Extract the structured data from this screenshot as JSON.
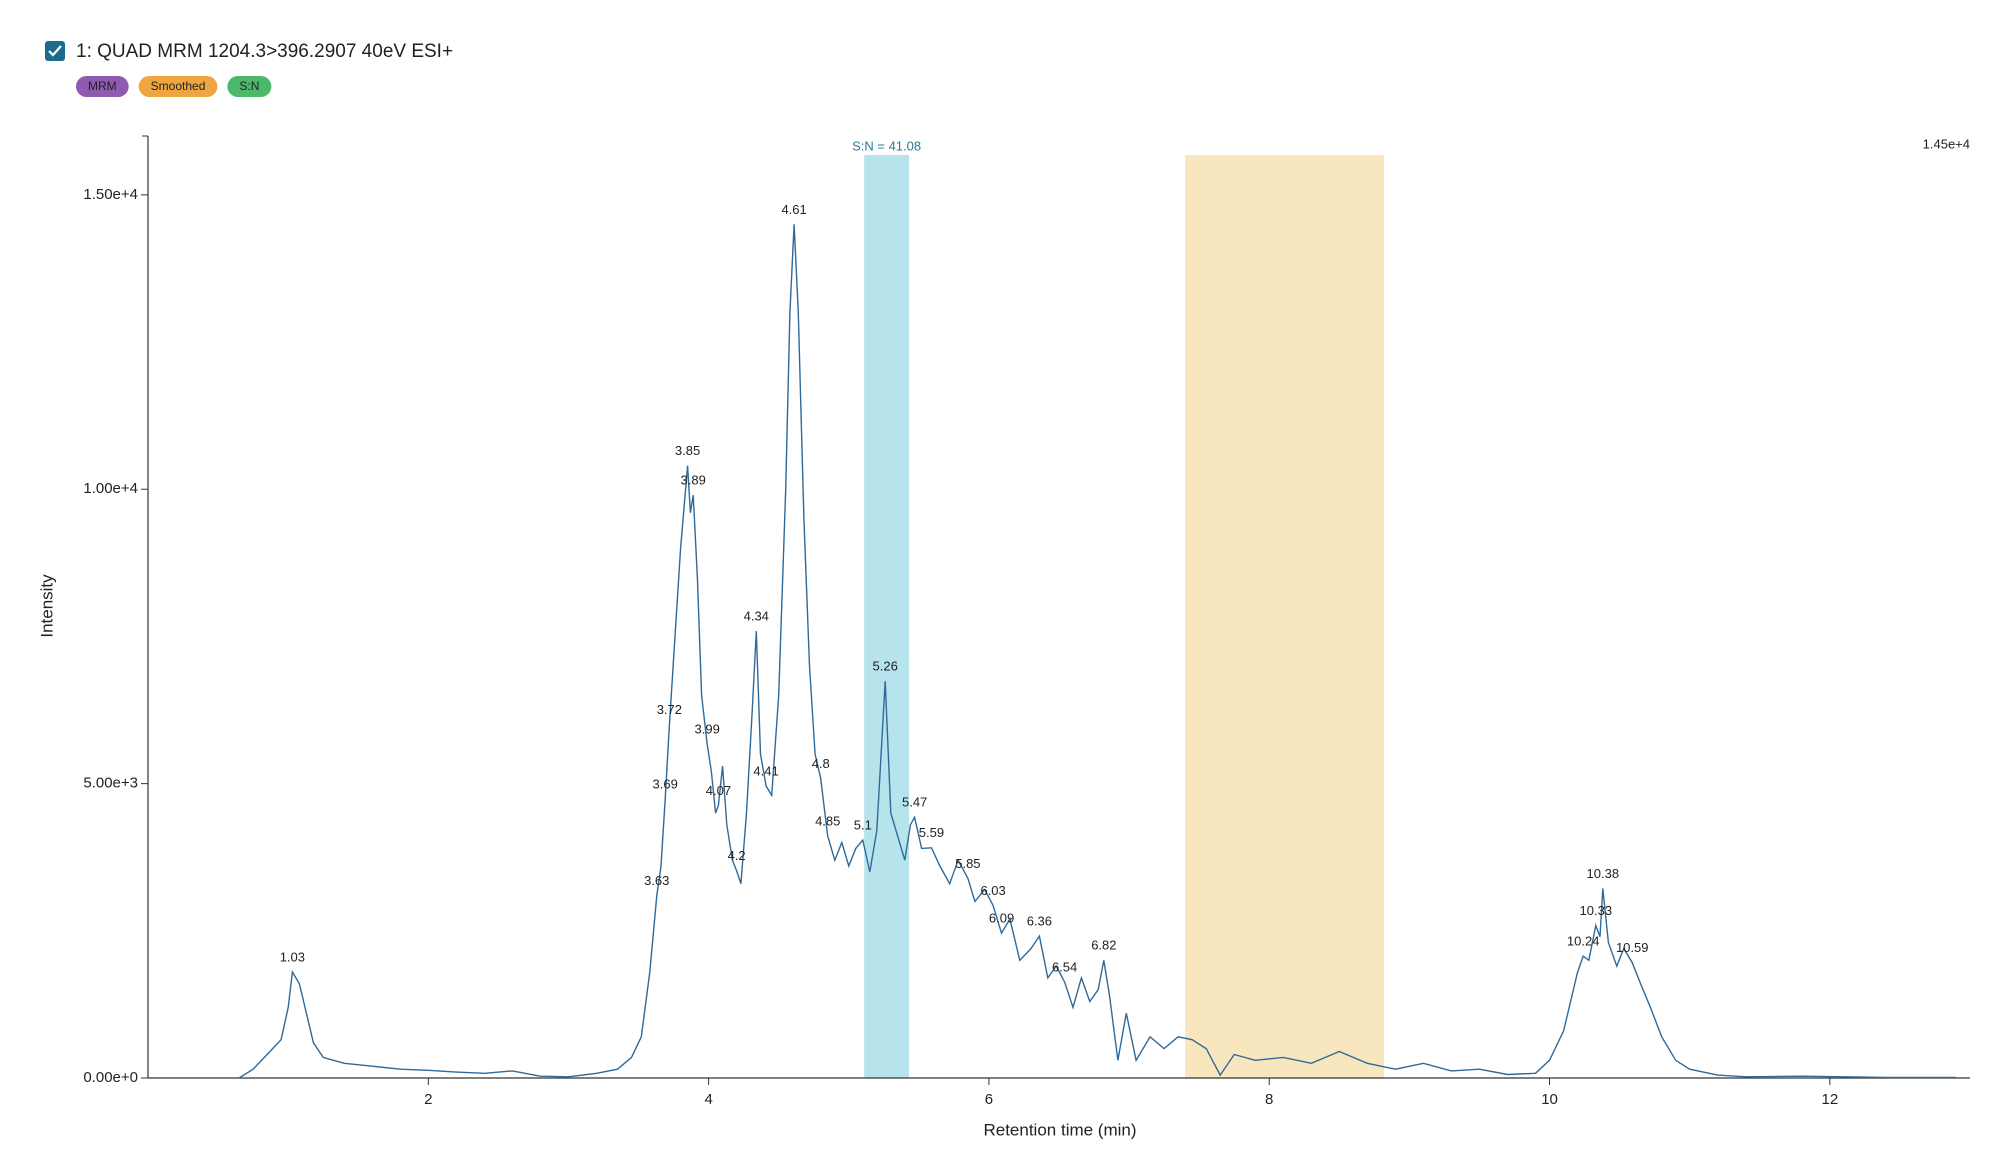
{
  "header": {
    "title": "1: QUAD MRM 1204.3>396.2907 40eV ESI+",
    "badges": [
      {
        "label": "MRM",
        "color": "#8e5bb0"
      },
      {
        "label": "Smoothed",
        "color": "#f0a640"
      },
      {
        "label": "S:N",
        "color": "#4cb86a"
      }
    ]
  },
  "chart_data": {
    "type": "line",
    "xlabel": "Retention time (min)",
    "ylabel": "Intensity",
    "xlim": [
      0,
      13
    ],
    "ylim": [
      0,
      16000
    ],
    "xticks": [
      2,
      4,
      6,
      8,
      10,
      12
    ],
    "yticks": [
      {
        "value": 0,
        "label": "0.00e+0"
      },
      {
        "value": 5000,
        "label": "5.00e+3"
      },
      {
        "value": 10000,
        "label": "1.00e+4"
      },
      {
        "value": 15000,
        "label": "1.50e+4"
      }
    ],
    "max_label": "1.45e+4",
    "regions": [
      {
        "xlim": [
          5.11,
          5.43
        ],
        "color": "#b7e3ec",
        "label": "S:N = 41.08"
      },
      {
        "xlim": [
          7.4,
          8.82
        ],
        "color": "#f8e6bf"
      }
    ],
    "series": [
      {
        "name": "MRM",
        "color": "#2f6a9a",
        "x": [
          0.65,
          0.75,
          0.85,
          0.95,
          1.0,
          1.03,
          1.08,
          1.12,
          1.18,
          1.25,
          1.4,
          1.6,
          1.8,
          2.0,
          2.2,
          2.4,
          2.6,
          2.8,
          3.0,
          3.2,
          3.35,
          3.45,
          3.52,
          3.58,
          3.63,
          3.66,
          3.69,
          3.72,
          3.76,
          3.8,
          3.85,
          3.87,
          3.89,
          3.92,
          3.95,
          3.99,
          4.02,
          4.05,
          4.07,
          4.1,
          4.13,
          4.17,
          4.2,
          4.23,
          4.27,
          4.31,
          4.34,
          4.37,
          4.41,
          4.45,
          4.5,
          4.55,
          4.58,
          4.61,
          4.64,
          4.68,
          4.72,
          4.76,
          4.8,
          4.83,
          4.85,
          4.9,
          4.95,
          5.0,
          5.05,
          5.1,
          5.15,
          5.2,
          5.26,
          5.3,
          5.35,
          5.4,
          5.44,
          5.47,
          5.52,
          5.59,
          5.65,
          5.72,
          5.78,
          5.85,
          5.9,
          5.97,
          6.03,
          6.09,
          6.15,
          6.22,
          6.3,
          6.36,
          6.42,
          6.48,
          6.54,
          6.6,
          6.66,
          6.72,
          6.78,
          6.82,
          6.86,
          6.92,
          6.98,
          7.05,
          7.15,
          7.25,
          7.35,
          7.45,
          7.55,
          7.65,
          7.75,
          7.9,
          8.1,
          8.3,
          8.5,
          8.7,
          8.9,
          9.1,
          9.3,
          9.5,
          9.7,
          9.9,
          10.0,
          10.1,
          10.2,
          10.24,
          10.28,
          10.33,
          10.36,
          10.38,
          10.42,
          10.48,
          10.53,
          10.59,
          10.65,
          10.72,
          10.8,
          10.9,
          11.0,
          11.2,
          11.4,
          11.8,
          12.4,
          12.9
        ],
        "values": [
          0,
          150,
          400,
          650,
          1200,
          1800,
          1600,
          1200,
          600,
          350,
          250,
          200,
          150,
          130,
          100,
          80,
          120,
          30,
          20,
          80,
          150,
          350,
          700,
          1800,
          3100,
          3600,
          4740,
          6000,
          7500,
          9000,
          10400,
          9600,
          9900,
          8500,
          6500,
          5670,
          5200,
          4500,
          4630,
          5300,
          4300,
          3700,
          3520,
          3300,
          4500,
          6200,
          7590,
          5500,
          4960,
          4800,
          6500,
          10000,
          13000,
          14500,
          13000,
          9500,
          7000,
          5500,
          5090,
          4500,
          4110,
          3700,
          4000,
          3600,
          3900,
          4040,
          3500,
          4200,
          6740,
          4500,
          4100,
          3700,
          4300,
          4430,
          3900,
          3910,
          3600,
          3300,
          3700,
          3390,
          3000,
          3200,
          2930,
          2460,
          2700,
          2000,
          2200,
          2410,
          1700,
          1900,
          1630,
          1200,
          1700,
          1300,
          1500,
          2000,
          1400,
          300,
          1100,
          300,
          700,
          500,
          700,
          650,
          500,
          50,
          400,
          300,
          350,
          250,
          450,
          250,
          150,
          250,
          120,
          150,
          60,
          80,
          300,
          800,
          1800,
          2070,
          2000,
          2590,
          2400,
          3220,
          2300,
          1900,
          2200,
          1960,
          1600,
          1200,
          700,
          300,
          150,
          50,
          20,
          30,
          10,
          10
        ]
      }
    ],
    "peaks": [
      {
        "x": 1.03,
        "y": 1800
      },
      {
        "x": 3.63,
        "y": 3100
      },
      {
        "x": 3.69,
        "y": 4740
      },
      {
        "x": 3.72,
        "y": 6000
      },
      {
        "x": 3.85,
        "y": 10400
      },
      {
        "x": 3.89,
        "y": 9900
      },
      {
        "x": 3.99,
        "y": 5670
      },
      {
        "x": 4.07,
        "y": 4630
      },
      {
        "x": 4.2,
        "y": 3520
      },
      {
        "x": 4.34,
        "y": 7590
      },
      {
        "x": 4.41,
        "y": 4960
      },
      {
        "x": 4.61,
        "y": 14500
      },
      {
        "x": 4.8,
        "y": 5090
      },
      {
        "x": 4.85,
        "y": 4110
      },
      {
        "x": 5.1,
        "y": 4040
      },
      {
        "x": 5.26,
        "y": 6740
      },
      {
        "x": 5.47,
        "y": 4430
      },
      {
        "x": 5.59,
        "y": 3910
      },
      {
        "x": 5.85,
        "y": 3390
      },
      {
        "x": 6.03,
        "y": 2930
      },
      {
        "x": 6.09,
        "y": 2460
      },
      {
        "x": 6.36,
        "y": 2410
      },
      {
        "x": 6.54,
        "y": 1630
      },
      {
        "x": 6.82,
        "y": 2000
      },
      {
        "x": 10.24,
        "y": 2070
      },
      {
        "x": 10.33,
        "y": 2590
      },
      {
        "x": 10.38,
        "y": 3220
      },
      {
        "x": 10.59,
        "y": 1960
      }
    ]
  }
}
